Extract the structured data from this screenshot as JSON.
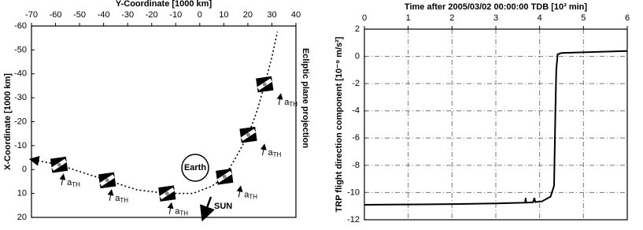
{
  "chart_data": [
    {
      "type": "trajectory",
      "x_label": "Y-Coordinate [1000 km]",
      "y_label": "X-Coordinate [1000 km]",
      "side_label": "Ecliptic plane projection",
      "xlim": [
        -70,
        40
      ],
      "xticks": [
        -70,
        -60,
        -50,
        -40,
        -30,
        -20,
        -10,
        0,
        10,
        20,
        30,
        40
      ],
      "ylim": [
        20,
        -60
      ],
      "yticks": [
        -60,
        -50,
        -40,
        -30,
        -20,
        -10,
        0,
        10,
        20
      ],
      "x": [
        -69,
        -58.5,
        -48,
        -38.5,
        -26,
        -13.6,
        -3,
        5,
        10.3,
        15,
        20.2,
        24,
        27,
        30,
        32.3
      ],
      "y": [
        -4,
        -2,
        1.5,
        4.5,
        8.5,
        10,
        10,
        7,
        3,
        -5,
        -14.5,
        -25,
        -35.6,
        -47,
        -57.6
      ],
      "spacecraft_x": [
        -58.5,
        -38.5,
        -13.6,
        10.3,
        20.2,
        27
      ],
      "spacecraft_y": [
        -2,
        4.5,
        10,
        3,
        -14.5,
        -35.6
      ],
      "annotation_main": "a",
      "annotation_sub": "TH",
      "earth_label": "Earth",
      "sun_label": "SUN"
    },
    {
      "type": "line",
      "x_label": "Time after 2005/03/02 00:00:00 TDB [10³ min]",
      "y_label": "TRP flight direction component [10⁻⁹ m/s²]",
      "xlim": [
        0,
        6
      ],
      "xticks": [
        0,
        1,
        2,
        3,
        4,
        5,
        6
      ],
      "ylim": [
        -12,
        2
      ],
      "yticks": [
        -12,
        -10,
        -8,
        -6,
        -4,
        -2,
        0,
        2
      ],
      "grid": true,
      "color": "#000000",
      "x": [
        0,
        1,
        2,
        3,
        3.6,
        3.67,
        3.68,
        3.69,
        3.85,
        3.88,
        3.9,
        4.05,
        4.25,
        4.33,
        4.36,
        4.38,
        4.41,
        4.5,
        5,
        6
      ],
      "y": [
        -10.9,
        -10.88,
        -10.85,
        -10.8,
        -10.75,
        -10.74,
        -10.4,
        -10.74,
        -10.72,
        -10.4,
        -10.7,
        -10.65,
        -10.3,
        -9.5,
        -4,
        -1,
        0.15,
        0.25,
        0.3,
        0.4
      ]
    }
  ]
}
